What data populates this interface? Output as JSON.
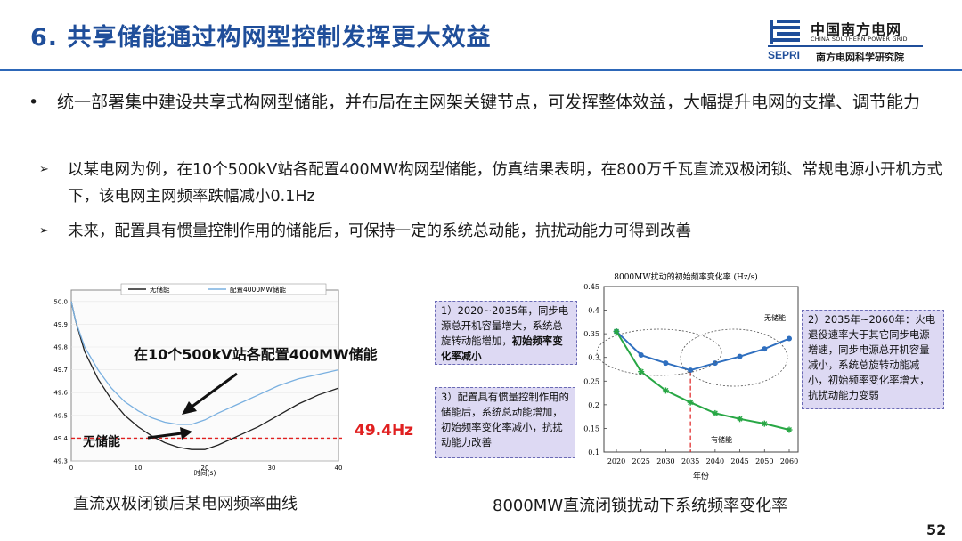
{
  "header": {
    "title": "6. 共享储能通过构网型控制发挥更大效益",
    "logo_cn": "中国南方电网",
    "logo_en": "CHINA SOUTHERN POWER GRID",
    "logo_sepri": "SEPRI",
    "logo_institute": "南方电网科学研究院"
  },
  "bullet": {
    "text": "统一部署集中建设共享式构网型储能，并布局在主网架关键节点，可发挥整体效益，大幅提升电网的支撑、调节能力"
  },
  "sub_bullets": [
    {
      "text": "以某电网为例，在10个500kV站各配置400MW构网型储能，仿真结果表明，在800万千瓦直流双极闭锁、常规电源小开机方式下，该电网主网频率跌幅减小0.1Hz"
    },
    {
      "text": "未来，配置具有惯量控制作用的储能后，可保持一定的系统总动能，抗扰动能力可得到改善"
    }
  ],
  "left_figure": {
    "caption": "直流双极闭锁后某电网频率曲线",
    "callout_top": "在10个500kV站各配置400MW储能",
    "callout_bottom": "无储能",
    "threshold_label": "49.4Hz"
  },
  "right_figure": {
    "caption": "8000MW直流闭锁扰动下系统频率变化率",
    "note1": {
      "text": "1）2020~2035年，同步电源总开机容量增大，系统总旋转动能增加，",
      "bold": "初始频率变化率减小"
    },
    "note2": {
      "text": "2）2035年~2060年：火电退役速率大于其它同步电源增速，同步电源总开机容量减小，系统总旋转动能减小，初始频率变化率增大，抗扰动能力变弱"
    },
    "note3": {
      "text": "3）配置具有惯量控制作用的储能后，系统总动能增加，初始频率变化率减小，抗扰动能力改善"
    }
  },
  "page_number": "52",
  "chart_data": [
    {
      "type": "line",
      "title": "",
      "xlabel": "时间(s)",
      "ylabel": "",
      "xlim": [
        0,
        40
      ],
      "ylim": [
        49.3,
        50.05
      ],
      "x_ticks": [
        0,
        10,
        20,
        30,
        40
      ],
      "y_ticks": [
        "50.0",
        "49.9",
        "49.8",
        "49.7",
        "49.6",
        "49.5",
        "49.4",
        "49.3"
      ],
      "legend": "top-center",
      "series": [
        {
          "name": "无储能",
          "color": "#222222",
          "x": [
            0,
            0.6,
            2,
            4,
            6,
            8,
            10,
            12,
            14,
            16,
            18,
            20,
            22,
            25,
            28,
            31,
            34,
            37,
            40
          ],
          "y": [
            50.0,
            49.92,
            49.78,
            49.66,
            49.57,
            49.5,
            49.45,
            49.41,
            49.38,
            49.36,
            49.35,
            49.35,
            49.37,
            49.41,
            49.45,
            49.5,
            49.55,
            49.59,
            49.62
          ]
        },
        {
          "name": "配置4000MW储能",
          "color": "#7ab0e0",
          "x": [
            0,
            0.6,
            2,
            4,
            6,
            8,
            10,
            12,
            14,
            16,
            18,
            20,
            22,
            25,
            28,
            31,
            34,
            37,
            40
          ],
          "y": [
            50.0,
            49.92,
            49.8,
            49.7,
            49.62,
            49.56,
            49.52,
            49.49,
            49.47,
            49.46,
            49.46,
            49.48,
            49.51,
            49.55,
            49.59,
            49.63,
            49.66,
            49.68,
            49.7
          ]
        }
      ],
      "reference_line": {
        "y": 49.4,
        "label": "49.4Hz",
        "color": "#e02020"
      }
    },
    {
      "type": "line",
      "title": "8000MW扰动的初始频率变化率 (Hz/s)",
      "xlabel": "年份",
      "ylabel": "",
      "categories": [
        "2020",
        "2025",
        "2030",
        "2035",
        "2040",
        "2045",
        "2050",
        "2060"
      ],
      "ylim": [
        0.1,
        0.45
      ],
      "y_ticks": [
        "0.1",
        "0.15",
        "0.2",
        "0.25",
        "0.3",
        "0.35",
        "0.4",
        "0.45"
      ],
      "series": [
        {
          "name": "无储能",
          "color": "#2f6fbf",
          "values": [
            0.355,
            0.305,
            0.288,
            0.273,
            0.288,
            0.302,
            0.318,
            0.34
          ]
        },
        {
          "name": "有储能",
          "color": "#28a745",
          "values": [
            0.355,
            0.27,
            0.23,
            0.205,
            0.182,
            0.17,
            0.16,
            0.147
          ]
        }
      ],
      "marker_line": {
        "x": "2035",
        "color": "#e02020"
      }
    }
  ]
}
